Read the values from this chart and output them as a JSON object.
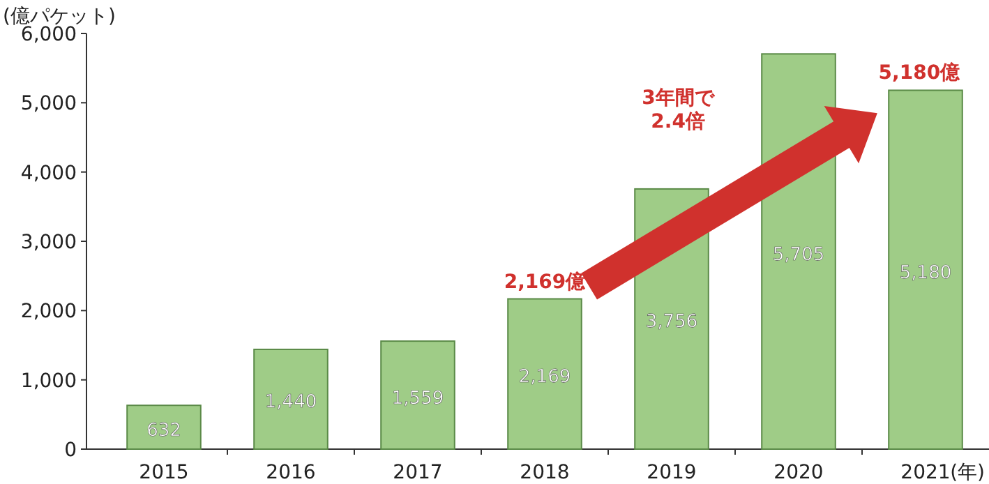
{
  "chart_data": {
    "type": "bar",
    "ylabel": "(億パケット)",
    "xlabel": "(年)",
    "categories": [
      "2015",
      "2016",
      "2017",
      "2018",
      "2019",
      "2020",
      "2021"
    ],
    "values": [
      632,
      1440,
      1559,
      2169,
      3756,
      5705,
      5180
    ],
    "value_labels": [
      "632",
      "1,440",
      "1,559",
      "2,169",
      "3,756",
      "5,705",
      "5,180"
    ],
    "color": "#9fcc87",
    "ylim": [
      0,
      6000
    ],
    "yticks": [
      {
        "value": 0,
        "label": "0"
      },
      {
        "value": 1000,
        "label": "1,000"
      },
      {
        "value": 2000,
        "label": "2,000"
      },
      {
        "value": 3000,
        "label": "3,000"
      },
      {
        "value": 4000,
        "label": "4,000"
      },
      {
        "value": 5000,
        "label": "5,000"
      },
      {
        "value": 6000,
        "label": "6,000"
      }
    ],
    "grid": false,
    "annotations": [
      {
        "text": "2,169億",
        "x": "2018",
        "y": 2169
      },
      {
        "text": "5,180億",
        "x": "2021",
        "y": 5180
      },
      "3年間で 2.4倍"
    ]
  }
}
